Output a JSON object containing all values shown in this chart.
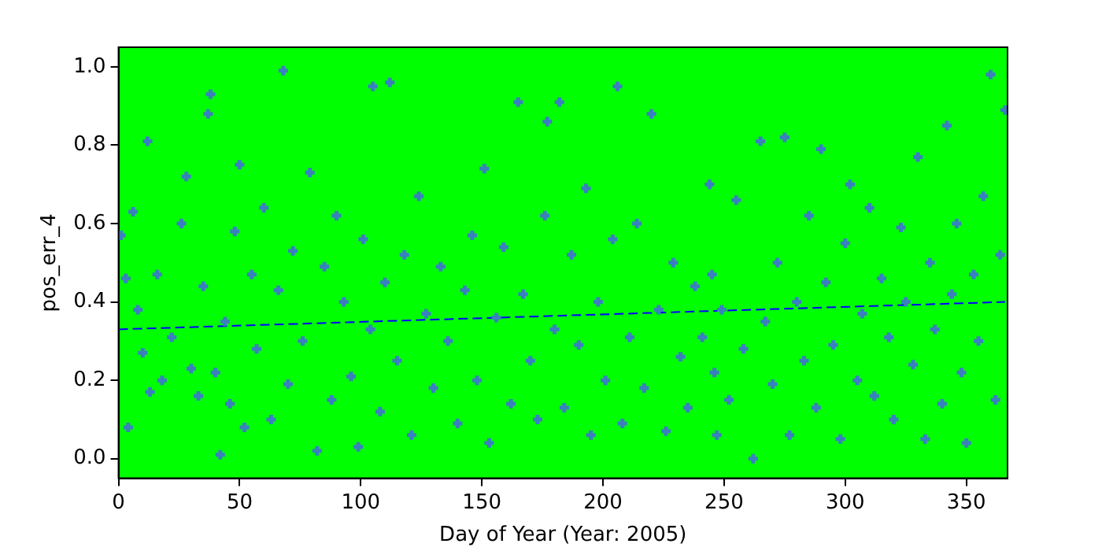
{
  "chart_data": {
    "type": "scatter",
    "xlabel": "Day of Year (Year: 2005)",
    "ylabel": "pos_err_4",
    "xlim": [
      0,
      367
    ],
    "ylim": [
      -0.05,
      1.05
    ],
    "xticks": [
      0,
      50,
      100,
      150,
      200,
      250,
      300,
      350
    ],
    "yticks": [
      {
        "value": 0,
        "label": "0.0"
      },
      {
        "value": 0.2,
        "label": "0.2"
      },
      {
        "value": 0.4,
        "label": "0.4"
      },
      {
        "value": 0.6,
        "label": "0.6"
      },
      {
        "value": 0.8,
        "label": "0.8"
      },
      {
        "value": 1,
        "label": "1.0"
      }
    ],
    "grid": false,
    "legend": false,
    "series": [
      {
        "type": "scatter",
        "color": "#3a7fc0",
        "marker": "cross",
        "x": [
          1,
          3,
          4,
          6,
          8,
          10,
          12,
          13,
          16,
          18,
          22,
          26,
          28,
          30,
          33,
          35,
          37,
          38,
          40,
          42,
          44,
          46,
          48,
          50,
          52,
          55,
          57,
          60,
          63,
          66,
          68,
          70,
          72,
          76,
          79,
          82,
          85,
          88,
          90,
          93,
          96,
          99,
          101,
          104,
          105,
          108,
          110,
          112,
          115,
          118,
          121,
          124,
          127,
          130,
          133,
          136,
          140,
          143,
          146,
          148,
          151,
          153,
          156,
          159,
          162,
          165,
          167,
          170,
          173,
          176,
          177,
          180,
          182,
          184,
          187,
          190,
          193,
          195,
          198,
          201,
          204,
          206,
          208,
          211,
          214,
          217,
          220,
          223,
          226,
          229,
          232,
          235,
          238,
          241,
          244,
          245,
          246,
          247,
          249,
          252,
          255,
          258,
          262,
          265,
          267,
          270,
          272,
          275,
          277,
          280,
          283,
          285,
          288,
          290,
          292,
          295,
          298,
          300,
          302,
          305,
          307,
          310,
          312,
          315,
          318,
          320,
          323,
          325,
          328,
          330,
          333,
          335,
          337,
          340,
          342,
          344,
          346,
          348,
          350,
          353,
          355,
          357,
          360,
          362,
          364,
          366
        ],
        "values": [
          0.57,
          0.46,
          0.08,
          0.63,
          0.38,
          0.27,
          0.81,
          0.17,
          0.47,
          0.2,
          0.31,
          0.6,
          0.72,
          0.23,
          0.16,
          0.44,
          0.88,
          0.93,
          0.22,
          0.01,
          0.35,
          0.14,
          0.58,
          0.75,
          0.08,
          0.47,
          0.28,
          0.64,
          0.1,
          0.43,
          0.99,
          0.19,
          0.53,
          0.3,
          0.73,
          0.02,
          0.49,
          0.15,
          0.62,
          0.4,
          0.21,
          0.03,
          0.56,
          0.33,
          0.95,
          0.12,
          0.45,
          0.96,
          0.25,
          0.52,
          0.06,
          0.67,
          0.37,
          0.18,
          0.49,
          0.3,
          0.09,
          0.43,
          0.57,
          0.2,
          0.74,
          0.04,
          0.36,
          0.54,
          0.14,
          0.91,
          0.42,
          0.25,
          0.1,
          0.62,
          0.86,
          0.33,
          0.91,
          0.13,
          0.52,
          0.29,
          0.69,
          0.06,
          0.4,
          0.2,
          0.56,
          0.95,
          0.09,
          0.31,
          0.6,
          0.18,
          0.88,
          0.38,
          0.07,
          0.5,
          0.26,
          0.13,
          0.44,
          0.31,
          0.7,
          0.47,
          0.22,
          0.06,
          0.38,
          0.15,
          0.66,
          0.28,
          0.0,
          0.81,
          0.35,
          0.19,
          0.5,
          0.82,
          0.06,
          0.4,
          0.25,
          0.62,
          0.13,
          0.79,
          0.45,
          0.29,
          0.05,
          0.55,
          0.7,
          0.2,
          0.37,
          0.64,
          0.16,
          0.46,
          0.31,
          0.1,
          0.59,
          0.4,
          0.24,
          0.77,
          0.05,
          0.5,
          0.33,
          0.14,
          0.85,
          0.42,
          0.6,
          0.22,
          0.04,
          0.47,
          0.3,
          0.67,
          0.98,
          0.15,
          0.52,
          0.89
        ]
      },
      {
        "type": "line",
        "color": "#0000ff",
        "line_style": "dashed",
        "marker": "none",
        "x": [
          0,
          366
        ],
        "values": [
          0.33,
          0.4
        ]
      }
    ]
  }
}
